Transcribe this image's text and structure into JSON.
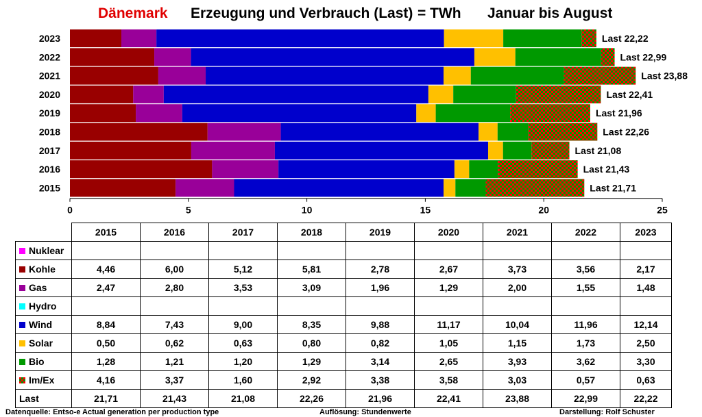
{
  "title": {
    "country": "Dänemark",
    "main": "Erzeugung und Verbrauch (Last)",
    "unit": "=  TWh",
    "period": "Januar bis August"
  },
  "footer": {
    "source": "Datenquelle: Entso-e  Actual generation per production type",
    "resolution": "Auflösung: Stundenwerte",
    "author": "Darstellung:  Rolf Schuster"
  },
  "colors": {
    "Nuklear": "#ff00ff",
    "Kohle": "#990000",
    "Gas": "#990099",
    "Hydro": "#00ffff",
    "Wind": "#0000cc",
    "Solar": "#ffc000",
    "Bio": "#009900",
    "Im/Ex": "checker:#009900/#ff0000"
  },
  "chart_data": {
    "type": "bar",
    "orientation": "horizontal",
    "stacked": true,
    "title": "Dänemark   Erzeugung und Verbrauch (Last)   =  TWh   Januar bis August",
    "xlabel": "",
    "ylabel": "",
    "xlim": [
      0,
      25
    ],
    "xticks": [
      0,
      5,
      10,
      15,
      20,
      25
    ],
    "grid": false,
    "legend": "table-below",
    "categories": [
      "2023",
      "2022",
      "2021",
      "2020",
      "2019",
      "2018",
      "2017",
      "2016",
      "2015"
    ],
    "series": [
      {
        "name": "Nuklear",
        "values": [
          null,
          null,
          null,
          null,
          null,
          null,
          null,
          null,
          null
        ]
      },
      {
        "name": "Kohle",
        "values": [
          2.17,
          3.56,
          3.73,
          2.67,
          2.78,
          5.81,
          5.12,
          6.0,
          4.46
        ]
      },
      {
        "name": "Gas",
        "values": [
          1.48,
          1.55,
          2.0,
          1.29,
          1.96,
          3.09,
          3.53,
          2.8,
          2.47
        ]
      },
      {
        "name": "Hydro",
        "values": [
          null,
          null,
          null,
          null,
          null,
          null,
          null,
          null,
          null
        ]
      },
      {
        "name": "Wind",
        "values": [
          12.14,
          11.96,
          10.04,
          11.17,
          9.88,
          8.35,
          9.0,
          7.43,
          8.84
        ]
      },
      {
        "name": "Solar",
        "values": [
          2.5,
          1.73,
          1.15,
          1.05,
          0.82,
          0.8,
          0.63,
          0.62,
          0.5
        ]
      },
      {
        "name": "Bio",
        "values": [
          3.3,
          3.62,
          3.93,
          2.65,
          3.14,
          1.29,
          1.2,
          1.21,
          1.28
        ]
      },
      {
        "name": "Im/Ex",
        "values": [
          0.63,
          0.57,
          3.03,
          3.58,
          3.38,
          2.92,
          1.6,
          3.37,
          4.16
        ]
      }
    ],
    "annotations": [
      "Last 22,22",
      "Last 22,99",
      "Last 23,88",
      "Last 22,41",
      "Last 21,96",
      "Last 22,26",
      "Last 21,08",
      "Last 21,43",
      "Last 21,71"
    ]
  },
  "table": {
    "years": [
      "2015",
      "2016",
      "2017",
      "2018",
      "2019",
      "2020",
      "2021",
      "2022",
      "2023"
    ],
    "rows": [
      {
        "label": "Nuklear",
        "values": [
          "",
          "",
          "",
          "",
          "",
          "",
          "",
          "",
          ""
        ]
      },
      {
        "label": "Kohle",
        "values": [
          "4,46",
          "6,00",
          "5,12",
          "5,81",
          "2,78",
          "2,67",
          "3,73",
          "3,56",
          "2,17"
        ]
      },
      {
        "label": "Gas",
        "values": [
          "2,47",
          "2,80",
          "3,53",
          "3,09",
          "1,96",
          "1,29",
          "2,00",
          "1,55",
          "1,48"
        ]
      },
      {
        "label": "Hydro",
        "values": [
          "",
          "",
          "",
          "",
          "",
          "",
          "",
          "",
          ""
        ]
      },
      {
        "label": "Wind",
        "values": [
          "8,84",
          "7,43",
          "9,00",
          "8,35",
          "9,88",
          "11,17",
          "10,04",
          "11,96",
          "12,14"
        ]
      },
      {
        "label": "Solar",
        "values": [
          "0,50",
          "0,62",
          "0,63",
          "0,80",
          "0,82",
          "1,05",
          "1,15",
          "1,73",
          "2,50"
        ]
      },
      {
        "label": "Bio",
        "values": [
          "1,28",
          "1,21",
          "1,20",
          "1,29",
          "3,14",
          "2,65",
          "3,93",
          "3,62",
          "3,30"
        ]
      },
      {
        "label": "Im/Ex",
        "values": [
          "4,16",
          "3,37",
          "1,60",
          "2,92",
          "3,38",
          "3,58",
          "3,03",
          "0,57",
          "0,63"
        ]
      },
      {
        "label": "Last",
        "values": [
          "21,71",
          "21,43",
          "21,08",
          "22,26",
          "21,96",
          "22,41",
          "23,88",
          "22,99",
          "22,22"
        ]
      }
    ]
  }
}
